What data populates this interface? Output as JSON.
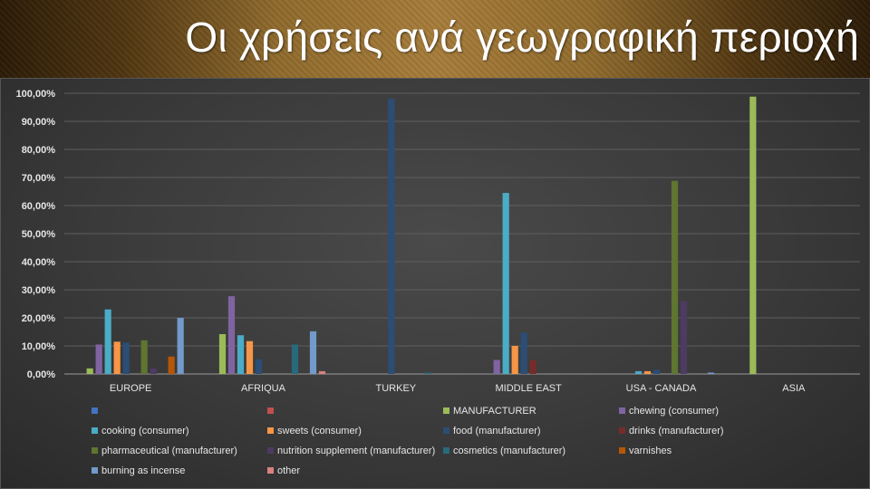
{
  "slide": {
    "title": "Οι χρήσεις ανά γεωγραφική περιοχή"
  },
  "chart_data": {
    "type": "bar",
    "categories": [
      "EUROPE",
      "AFRIQUA",
      "TURKEY",
      "MIDDLE EAST",
      "USA - CANADA",
      "ASIA"
    ],
    "ylim": [
      0,
      100
    ],
    "yticks": [
      "0,00%",
      "10,00%",
      "20,00%",
      "30,00%",
      "40,00%",
      "50,00%",
      "60,00%",
      "70,00%",
      "80,00%",
      "90,00%",
      "100,00%"
    ],
    "grid": true,
    "legend_position": "bottom",
    "series": [
      {
        "name": "",
        "color": "#4472c4",
        "values": [
          0,
          0,
          0,
          0,
          0,
          0
        ]
      },
      {
        "name": "",
        "color": "#c0504d",
        "values": [
          0,
          0,
          0,
          0,
          0,
          0
        ]
      },
      {
        "name": "MANUFACTURER",
        "color": "#9bbb59",
        "values": [
          2,
          14.2,
          0,
          0,
          0,
          98.8
        ]
      },
      {
        "name": "chewing (consumer)",
        "color": "#8064a2",
        "values": [
          10.5,
          27.7,
          0,
          5,
          0,
          0
        ]
      },
      {
        "name": "cooking (consumer)",
        "color": "#4bacc6",
        "values": [
          23,
          13.8,
          0,
          64.5,
          1,
          0
        ]
      },
      {
        "name": "sweets (consumer)",
        "color": "#f79646",
        "values": [
          11.5,
          11.7,
          0,
          10,
          1,
          0
        ]
      },
      {
        "name": "food (manufacturer)",
        "color": "#2c4d75",
        "values": [
          11.2,
          5.2,
          98,
          14.8,
          1.5,
          0
        ]
      },
      {
        "name": "drinks (manufacturer)",
        "color": "#772c2a",
        "values": [
          0,
          0,
          0,
          4.8,
          0,
          0
        ]
      },
      {
        "name": "pharmaceutical (manufacturer)",
        "color": "#5f7530",
        "values": [
          12,
          0,
          0,
          0,
          68.8,
          0
        ]
      },
      {
        "name": "nutrition supplement  (manufacturer)",
        "color": "#4d3b62",
        "values": [
          2,
          0,
          0,
          0,
          26,
          0
        ]
      },
      {
        "name": "cosmetics (manufacturer)",
        "color": "#276a7c",
        "values": [
          0,
          10.5,
          0.5,
          0,
          0,
          0
        ]
      },
      {
        "name": "varnishes",
        "color": "#b65708",
        "values": [
          6.2,
          0,
          0,
          0,
          0,
          0
        ]
      },
      {
        "name": "burning as incense",
        "color": "#729aca",
        "values": [
          20,
          15.2,
          0,
          0,
          0.5,
          0
        ]
      },
      {
        "name": "other",
        "color": "#d9827f",
        "values": [
          0,
          1,
          0,
          0,
          0,
          0
        ]
      }
    ]
  }
}
